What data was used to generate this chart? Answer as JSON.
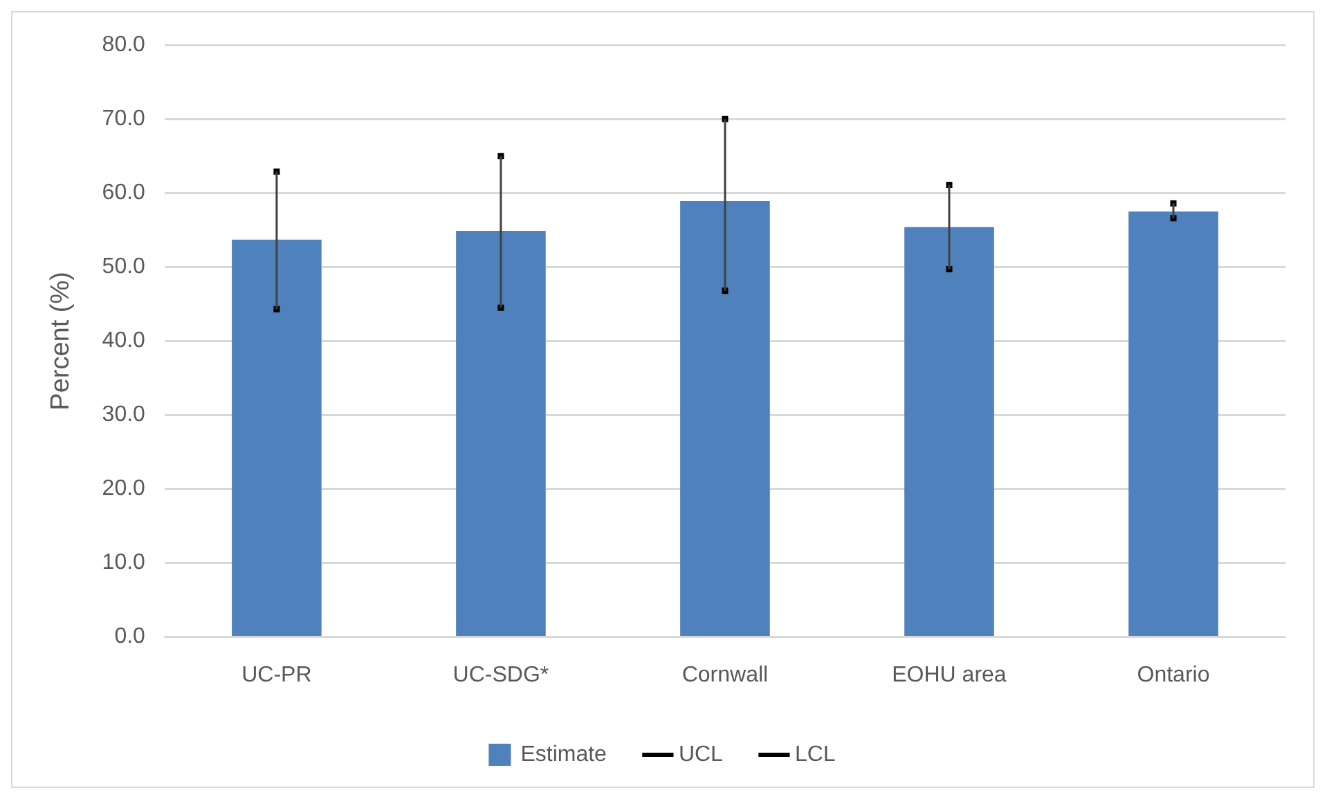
{
  "chart_data": {
    "type": "bar",
    "ylabel": "Percent (%)",
    "categories": [
      "UC-PR",
      "UC-SDG*",
      "Cornwall",
      "EOHU area",
      "Ontario"
    ],
    "series": [
      {
        "name": "Estimate",
        "color": "#4f81bd",
        "values": [
          53.7,
          54.9,
          58.9,
          55.4,
          57.5
        ]
      },
      {
        "name": "UCL",
        "type": "scatter",
        "color": "#000000",
        "marker": "square",
        "values": [
          62.9,
          65.0,
          70.0,
          61.1,
          58.6
        ]
      },
      {
        "name": "LCL",
        "type": "scatter",
        "color": "#000000",
        "marker": "square",
        "values": [
          44.3,
          44.5,
          46.8,
          49.7,
          56.6
        ]
      }
    ],
    "ylim": [
      0,
      80
    ],
    "yticks": [
      {
        "value": 0,
        "label": "0.0"
      },
      {
        "value": 10,
        "label": "10.0"
      },
      {
        "value": 20,
        "label": "20.0"
      },
      {
        "value": 30,
        "label": "30.0"
      },
      {
        "value": 40,
        "label": "40.0"
      },
      {
        "value": 50,
        "label": "50.0"
      },
      {
        "value": 60,
        "label": "60.0"
      },
      {
        "value": 70,
        "label": "70.0"
      },
      {
        "value": 80,
        "label": "80.0"
      }
    ],
    "grid": "y",
    "legend": "bottom"
  }
}
